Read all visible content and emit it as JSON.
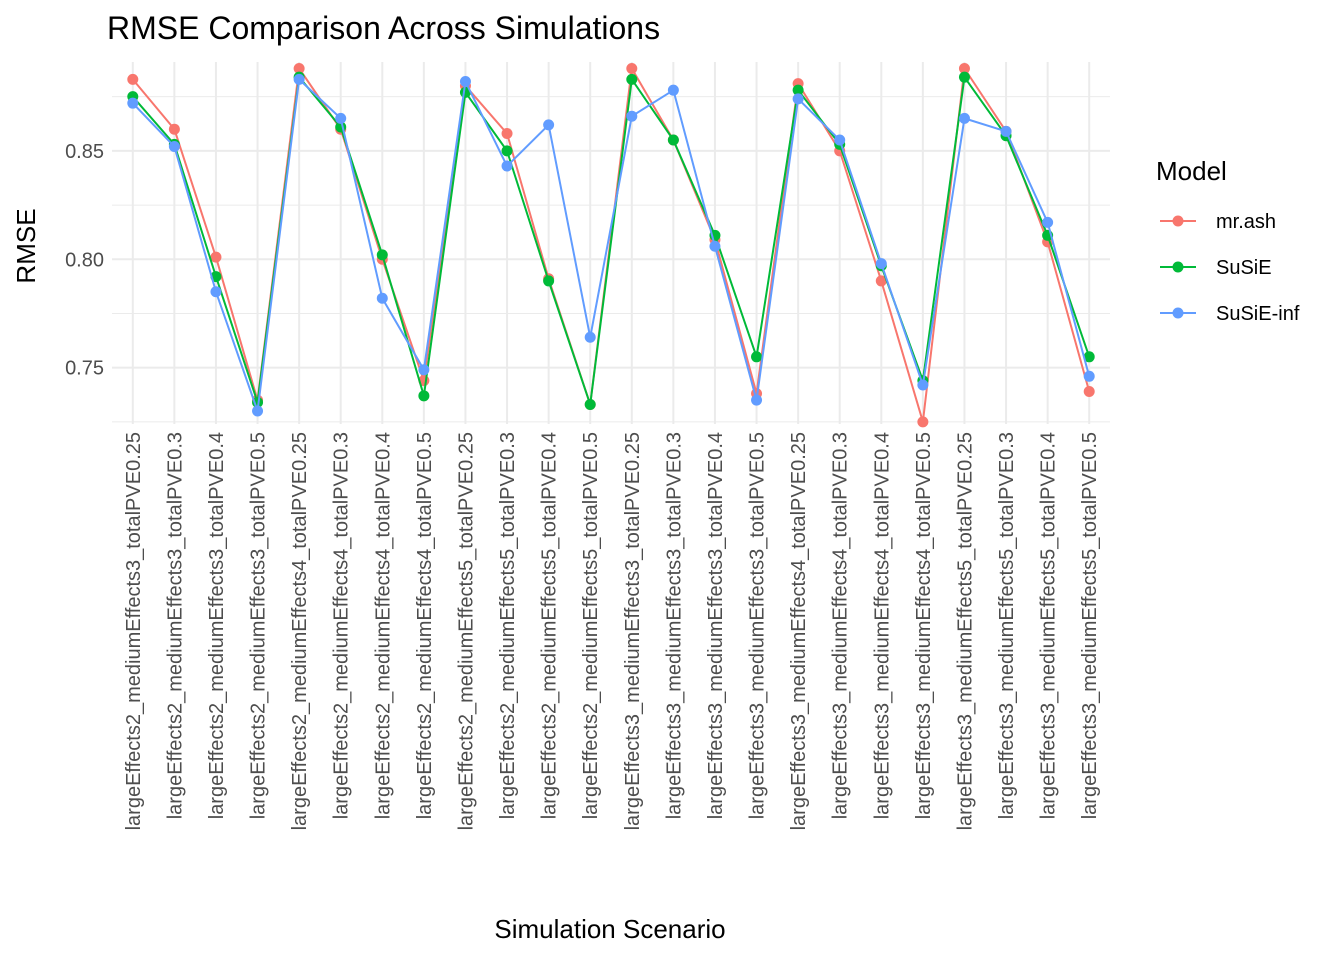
{
  "chart_data": {
    "type": "line",
    "title": "RMSE Comparison Across Simulations",
    "xlabel": "Simulation Scenario",
    "ylabel": "RMSE",
    "ylim": [
      0.724,
      0.891
    ],
    "yticks": [
      0.75,
      0.8,
      0.85
    ],
    "ytick_labels": [
      "0.75",
      "0.80",
      "0.85"
    ],
    "grid": true,
    "legend": {
      "title": "Model",
      "placement": "right"
    },
    "categories": [
      "largeEffects2_mediumEffects3_totalPVE0.25",
      "largeEffects2_mediumEffects3_totalPVE0.3",
      "largeEffects2_mediumEffects3_totalPVE0.4",
      "largeEffects2_mediumEffects3_totalPVE0.5",
      "largeEffects2_mediumEffects4_totalPVE0.25",
      "largeEffects2_mediumEffects4_totalPVE0.3",
      "largeEffects2_mediumEffects4_totalPVE0.4",
      "largeEffects2_mediumEffects4_totalPVE0.5",
      "largeEffects2_mediumEffects5_totalPVE0.25",
      "largeEffects2_mediumEffects5_totalPVE0.3",
      "largeEffects2_mediumEffects5_totalPVE0.4",
      "largeEffects2_mediumEffects5_totalPVE0.5",
      "largeEffects3_mediumEffects3_totalPVE0.25",
      "largeEffects3_mediumEffects3_totalPVE0.3",
      "largeEffects3_mediumEffects3_totalPVE0.4",
      "largeEffects3_mediumEffects3_totalPVE0.5",
      "largeEffects3_mediumEffects4_totalPVE0.25",
      "largeEffects3_mediumEffects4_totalPVE0.3",
      "largeEffects3_mediumEffects4_totalPVE0.4",
      "largeEffects3_mediumEffects4_totalPVE0.5",
      "largeEffects3_mediumEffects5_totalPVE0.25",
      "largeEffects3_mediumEffects5_totalPVE0.3",
      "largeEffects3_mediumEffects5_totalPVE0.4",
      "largeEffects3_mediumEffects5_totalPVE0.5"
    ],
    "series": [
      {
        "name": "mr.ash",
        "color": "#F8766D",
        "values": [
          0.883,
          0.86,
          0.801,
          0.735,
          0.888,
          0.86,
          0.8,
          0.744,
          0.88,
          0.858,
          0.791,
          0.733,
          0.888,
          0.855,
          0.809,
          0.738,
          0.881,
          0.85,
          0.79,
          0.725,
          0.888,
          0.859,
          0.808,
          0.739
        ]
      },
      {
        "name": "SuSiE",
        "color": "#00BA38",
        "values": [
          0.875,
          0.853,
          0.792,
          0.734,
          0.884,
          0.861,
          0.802,
          0.737,
          0.877,
          0.85,
          0.79,
          0.733,
          0.883,
          0.855,
          0.811,
          0.755,
          0.878,
          0.853,
          0.797,
          0.744,
          0.884,
          0.857,
          0.811,
          0.755
        ]
      },
      {
        "name": "SuSiE-inf",
        "color": "#619CFF",
        "values": [
          0.872,
          0.852,
          0.785,
          0.73,
          0.883,
          0.865,
          0.782,
          0.749,
          0.882,
          0.843,
          0.862,
          0.764,
          0.866,
          0.878,
          0.806,
          0.735,
          0.874,
          0.855,
          0.798,
          0.742,
          0.865,
          0.859,
          0.817,
          0.746
        ]
      }
    ]
  }
}
